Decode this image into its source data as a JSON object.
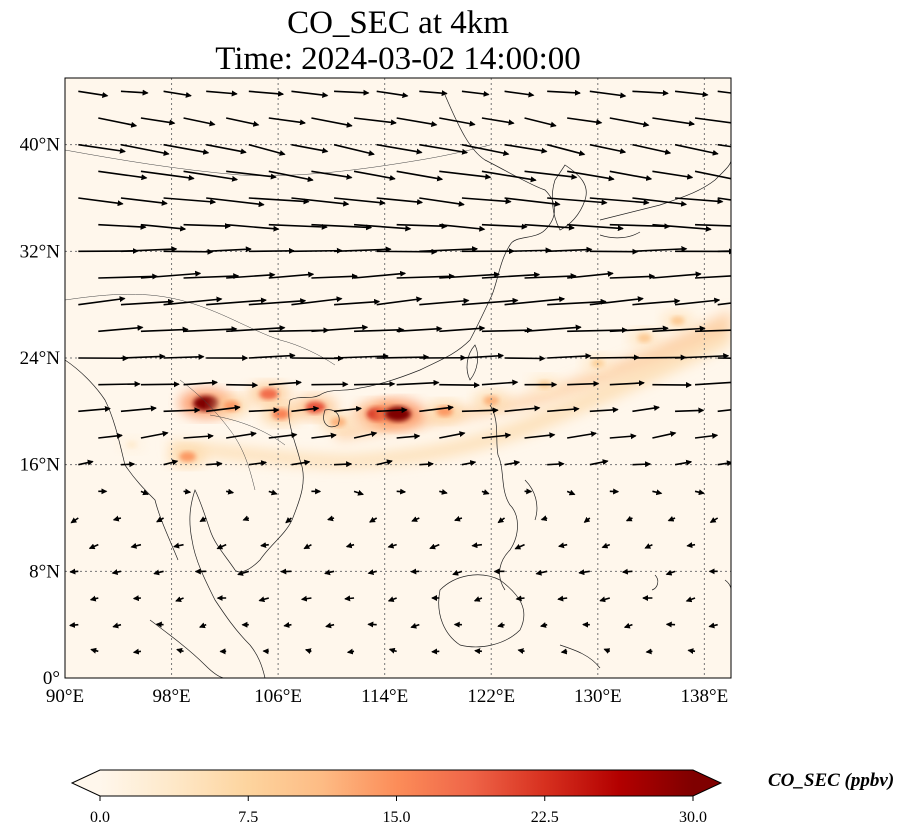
{
  "title": {
    "line1": "CO_SEC at 4km",
    "line2": "Time: 2024-03-02 14:00:00"
  },
  "map": {
    "lon_range": [
      90,
      140
    ],
    "lat_range": [
      0,
      45
    ],
    "lon_ticks": [
      {
        "value": 90,
        "label": "90°E"
      },
      {
        "value": 98,
        "label": "98°E"
      },
      {
        "value": 106,
        "label": "106°E"
      },
      {
        "value": 114,
        "label": "114°E"
      },
      {
        "value": 122,
        "label": "122°E"
      },
      {
        "value": 130,
        "label": "130°E"
      },
      {
        "value": 138,
        "label": "138°E"
      }
    ],
    "lat_ticks": [
      {
        "value": 0,
        "label": "0°"
      },
      {
        "value": 8,
        "label": "8°N"
      },
      {
        "value": 16,
        "label": "16°N"
      },
      {
        "value": 24,
        "label": "24°N"
      },
      {
        "value": 32,
        "label": "32°N"
      },
      {
        "value": 40,
        "label": "40°N"
      }
    ],
    "gridlines": true,
    "background_color": "#fff7ec",
    "plume": {
      "description_level": "ppbv",
      "hotspots": [
        {
          "lon": 100.6,
          "lat": 20.6,
          "value": 30
        },
        {
          "lon": 102.5,
          "lat": 20.4,
          "value": 14
        },
        {
          "lon": 105.3,
          "lat": 21.3,
          "value": 18
        },
        {
          "lon": 106.2,
          "lat": 19.8,
          "value": 16
        },
        {
          "lon": 108.8,
          "lat": 20.3,
          "value": 20
        },
        {
          "lon": 110.5,
          "lat": 19.2,
          "value": 12
        },
        {
          "lon": 113.5,
          "lat": 19.8,
          "value": 24
        },
        {
          "lon": 115.0,
          "lat": 19.8,
          "value": 30
        },
        {
          "lon": 118.5,
          "lat": 20.0,
          "value": 14
        },
        {
          "lon": 122.0,
          "lat": 20.8,
          "value": 12
        },
        {
          "lon": 126.0,
          "lat": 22.0,
          "value": 8
        },
        {
          "lon": 130.0,
          "lat": 23.6,
          "value": 8
        },
        {
          "lon": 133.5,
          "lat": 25.5,
          "value": 9
        },
        {
          "lon": 136.0,
          "lat": 26.8,
          "value": 9
        },
        {
          "lon": 99.2,
          "lat": 16.6,
          "value": 14
        },
        {
          "lon": 95.0,
          "lat": 17.5,
          "value": 3
        }
      ]
    }
  },
  "wind_field": {
    "units": "m/s (relative)",
    "description": "wind vectors at 4km",
    "rows": [
      {
        "lat": 44,
        "u": 6,
        "v": -0.6
      },
      {
        "lat": 42,
        "u": 7,
        "v": -1.2
      },
      {
        "lat": 40,
        "u": 8,
        "v": -1.6
      },
      {
        "lat": 38,
        "u": 9,
        "v": -1.4
      },
      {
        "lat": 36,
        "u": 10,
        "v": -1.0
      },
      {
        "lat": 34,
        "u": 10,
        "v": -0.6
      },
      {
        "lat": 32,
        "u": 10,
        "v": 0.2
      },
      {
        "lat": 30,
        "u": 10,
        "v": 0.6
      },
      {
        "lat": 28,
        "u": 10,
        "v": 0.9
      },
      {
        "lat": 26,
        "u": 10,
        "v": 0.5
      },
      {
        "lat": 24,
        "u": 9,
        "v": 0.2
      },
      {
        "lat": 22,
        "u": 7,
        "v": 0.2
      },
      {
        "lat": 20,
        "u": 6,
        "v": 0.5
      },
      {
        "lat": 18,
        "u": 5,
        "v": 0.7
      },
      {
        "lat": 16,
        "u": 3,
        "v": 0.4
      },
      {
        "lat": 14,
        "u": 1.5,
        "v": -0.3
      },
      {
        "lat": 12,
        "u": -1.2,
        "v": -0.6
      },
      {
        "lat": 10,
        "u": -1.6,
        "v": -0.5
      },
      {
        "lat": 8,
        "u": -1.8,
        "v": -0.3
      },
      {
        "lat": 6,
        "u": -1.6,
        "v": -0.3
      },
      {
        "lat": 4,
        "u": -1.4,
        "v": -0.2
      },
      {
        "lat": 2,
        "u": -1.2,
        "v": 0.1
      }
    ]
  },
  "colorbar": {
    "label": "CO_SEC (ppbv)",
    "min": 0,
    "max": 30,
    "extend": "both",
    "colormap": "OrRd",
    "stops": [
      "#fff7ec",
      "#fee8c8",
      "#fdd49e",
      "#fdbb84",
      "#fc8d59",
      "#ef6548",
      "#d7301f",
      "#b30000",
      "#7f0000"
    ],
    "ticks": [
      {
        "value": 0,
        "label": "0.0"
      },
      {
        "value": 7.5,
        "label": "7.5"
      },
      {
        "value": 15,
        "label": "15.0"
      },
      {
        "value": 22.5,
        "label": "22.5"
      },
      {
        "value": 30,
        "label": "30.0"
      }
    ]
  }
}
